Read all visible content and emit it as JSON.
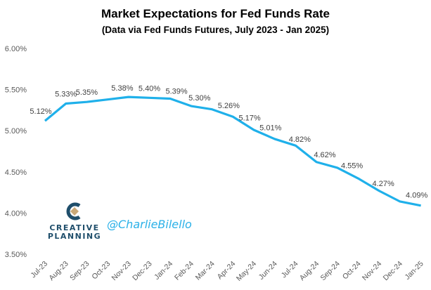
{
  "chart_data": {
    "type": "line",
    "title": "Market Expectations for Fed Funds Rate",
    "subtitle": "(Data via Fed Funds Futures, July 2023 - Jan 2025)",
    "xlabel": "",
    "ylabel": "",
    "ylim": [
      3.5,
      6.0
    ],
    "yticks": [
      "3.50%",
      "4.00%",
      "4.50%",
      "5.00%",
      "5.50%",
      "6.00%"
    ],
    "ytick_values": [
      3.5,
      4.0,
      4.5,
      5.0,
      5.5,
      6.0
    ],
    "grid": false,
    "categories": [
      "Jul-23",
      "Aug-23",
      "Sep-23",
      "Oct-23",
      "Nov-23",
      "Dec-23",
      "Jan-24",
      "Feb-24",
      "Mar-24",
      "Apr-24",
      "May-24",
      "Jun-24",
      "Jul-24",
      "Aug-24",
      "Sep-24",
      "Oct-24",
      "Nov-24",
      "Dec-24",
      "Jan-25"
    ],
    "series": [
      {
        "name": "Fed Funds Rate Expectation",
        "color": "#1fb0ea",
        "values": [
          5.12,
          5.33,
          5.35,
          5.38,
          5.41,
          5.4,
          5.39,
          5.3,
          5.26,
          5.17,
          5.01,
          4.9,
          4.82,
          4.62,
          4.55,
          4.42,
          4.27,
          4.14,
          4.09
        ]
      }
    ],
    "data_labels": [
      {
        "index": 0,
        "text": "5.12%"
      },
      {
        "index": 1,
        "text": "5.33%"
      },
      {
        "index": 2,
        "text": "5.35%"
      },
      {
        "index": 3.7,
        "text": "5.38%"
      },
      {
        "index": 5,
        "text": "5.40%"
      },
      {
        "index": 6.3,
        "text": "5.39%"
      },
      {
        "index": 7.4,
        "text": "5.30%"
      },
      {
        "index": 8.8,
        "text": "5.26%"
      },
      {
        "index": 9.8,
        "text": "5.17%"
      },
      {
        "index": 10.8,
        "text": "5.01%"
      },
      {
        "index": 12.2,
        "text": "4.82%"
      },
      {
        "index": 13.4,
        "text": "4.62%"
      },
      {
        "index": 14.7,
        "text": "4.55%"
      },
      {
        "index": 16.2,
        "text": "4.27%"
      },
      {
        "index": 17.8,
        "text": "4.09%"
      }
    ]
  },
  "branding": {
    "logo_line1": "CREATIVE",
    "logo_line2": "PLANNING",
    "handle": "@CharlieBilello"
  }
}
